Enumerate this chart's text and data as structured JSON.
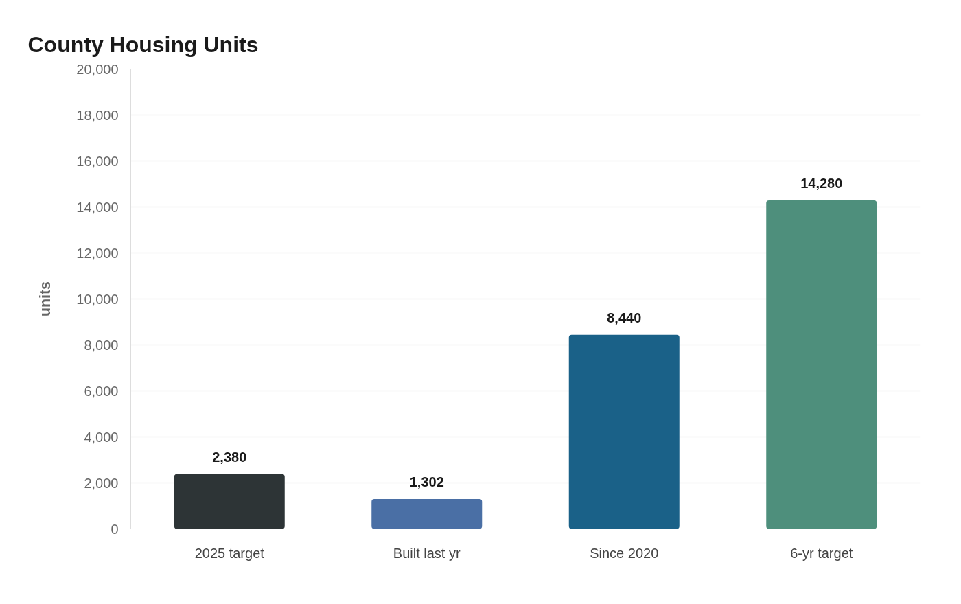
{
  "chart_data": {
    "type": "bar",
    "title": "County Housing Units",
    "ylabel": "units",
    "categories": [
      "2025 target",
      "Built last yr",
      "Since 2020",
      "6-yr target"
    ],
    "values": [
      2380,
      1302,
      8440,
      14280
    ],
    "colors": [
      "#2d3436",
      "#4a6fa5",
      "#1a6188",
      "#4e8f7c"
    ],
    "value_labels": [
      "2,380",
      "1,302",
      "8,440",
      "14,280"
    ],
    "ylim": [
      0,
      20000
    ],
    "yticks": [
      0,
      {
        "value": 2000,
        "label": "2,000"
      },
      {
        "value": 4000,
        "label": "4,000"
      },
      {
        "value": 6000,
        "label": "6,000"
      },
      {
        "value": 8000,
        "label": "8,000"
      },
      {
        "value": 10000,
        "label": "10,000"
      },
      {
        "value": 12000,
        "label": "12,000"
      },
      {
        "value": 14000,
        "label": "14,000"
      },
      {
        "value": 16000,
        "label": "16,000"
      },
      {
        "value": 18000,
        "label": "18,000"
      },
      {
        "value": 20000,
        "label": "20,000"
      }
    ],
    "grid": "y"
  }
}
